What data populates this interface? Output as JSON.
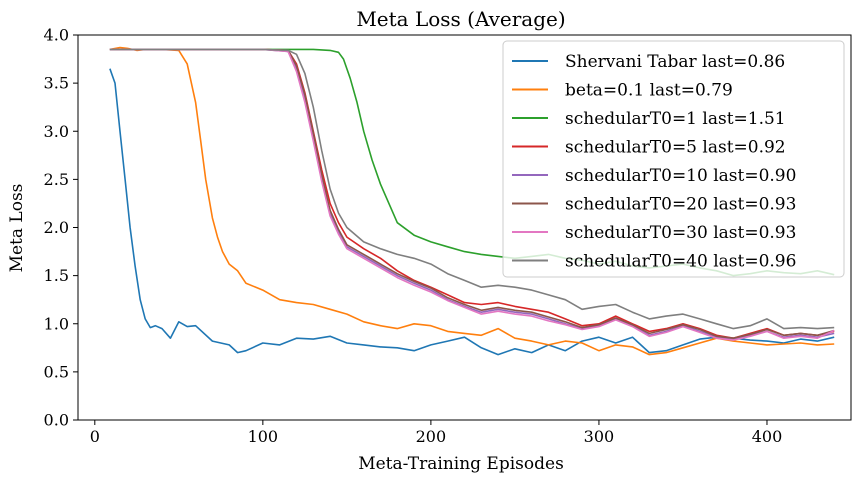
{
  "chart_data": {
    "type": "line",
    "title": "Meta Loss (Average)",
    "xlabel": "Meta-Training Episodes",
    "ylabel": "Meta Loss",
    "xlim": [
      -10,
      450
    ],
    "ylim": [
      0,
      4
    ],
    "xticks": [
      0,
      100,
      200,
      300,
      400
    ],
    "yticks": [
      0.0,
      0.5,
      1.0,
      1.5,
      2.0,
      2.5,
      3.0,
      3.5,
      4.0
    ],
    "xtick_labels": [
      "0",
      "100",
      "200",
      "300",
      "400"
    ],
    "ytick_labels": [
      "0.0",
      "0.5",
      "1.0",
      "1.5",
      "2.0",
      "2.5",
      "3.0",
      "3.5",
      "4.0"
    ],
    "grid": false,
    "legend_position": "top-right",
    "series": [
      {
        "name": "Shervani Tabar last=0.86",
        "color": "#1f77b4",
        "x": [
          9,
          12,
          15,
          18,
          21,
          24,
          27,
          30,
          33,
          36,
          40,
          45,
          50,
          55,
          60,
          70,
          80,
          85,
          90,
          100,
          110,
          120,
          130,
          140,
          150,
          160,
          170,
          180,
          190,
          200,
          210,
          220,
          230,
          240,
          250,
          260,
          270,
          280,
          290,
          300,
          310,
          320,
          330,
          340,
          350,
          360,
          370,
          380,
          390,
          400,
          410,
          420,
          430,
          440
        ],
        "y": [
          3.65,
          3.5,
          3.0,
          2.5,
          2.0,
          1.6,
          1.25,
          1.05,
          0.96,
          0.98,
          0.95,
          0.85,
          1.02,
          0.97,
          0.98,
          0.82,
          0.78,
          0.7,
          0.72,
          0.8,
          0.78,
          0.85,
          0.84,
          0.87,
          0.8,
          0.78,
          0.76,
          0.75,
          0.72,
          0.78,
          0.82,
          0.86,
          0.75,
          0.68,
          0.74,
          0.7,
          0.78,
          0.72,
          0.82,
          0.86,
          0.8,
          0.86,
          0.7,
          0.72,
          0.78,
          0.84,
          0.86,
          0.85,
          0.83,
          0.82,
          0.8,
          0.84,
          0.82,
          0.86
        ]
      },
      {
        "name": "beta=0.1 last=0.79",
        "color": "#ff7f0e",
        "x": [
          9,
          15,
          20,
          25,
          30,
          40,
          50,
          55,
          60,
          63,
          66,
          70,
          73,
          76,
          80,
          85,
          90,
          100,
          110,
          120,
          130,
          140,
          150,
          160,
          170,
          180,
          190,
          200,
          210,
          220,
          230,
          240,
          250,
          260,
          270,
          280,
          290,
          300,
          310,
          320,
          330,
          340,
          350,
          360,
          370,
          380,
          390,
          400,
          410,
          420,
          430,
          440
        ],
        "y": [
          3.85,
          3.87,
          3.86,
          3.84,
          3.85,
          3.85,
          3.84,
          3.7,
          3.3,
          2.9,
          2.5,
          2.1,
          1.9,
          1.75,
          1.62,
          1.55,
          1.42,
          1.35,
          1.25,
          1.22,
          1.2,
          1.15,
          1.1,
          1.02,
          0.98,
          0.95,
          1.0,
          0.98,
          0.92,
          0.9,
          0.88,
          0.95,
          0.85,
          0.82,
          0.78,
          0.82,
          0.8,
          0.72,
          0.78,
          0.76,
          0.68,
          0.7,
          0.75,
          0.8,
          0.85,
          0.82,
          0.8,
          0.78,
          0.79,
          0.8,
          0.78,
          0.79
        ]
      },
      {
        "name": "schedularT0=1 last=1.51",
        "color": "#2ca02c",
        "x": [
          9,
          50,
          100,
          130,
          140,
          145,
          148,
          152,
          156,
          160,
          165,
          170,
          175,
          180,
          190,
          200,
          210,
          220,
          230,
          240,
          250,
          260,
          270,
          280,
          290,
          300,
          310,
          320,
          330,
          340,
          350,
          360,
          370,
          380,
          390,
          400,
          410,
          420,
          430,
          440
        ],
        "y": [
          3.85,
          3.85,
          3.85,
          3.85,
          3.84,
          3.82,
          3.75,
          3.55,
          3.3,
          3.0,
          2.7,
          2.45,
          2.25,
          2.05,
          1.92,
          1.85,
          1.8,
          1.75,
          1.72,
          1.7,
          1.68,
          1.7,
          1.72,
          1.68,
          1.66,
          1.62,
          1.65,
          1.6,
          1.58,
          1.6,
          1.62,
          1.58,
          1.55,
          1.5,
          1.52,
          1.55,
          1.53,
          1.52,
          1.55,
          1.51
        ]
      },
      {
        "name": "schedularT0=5 last=0.92",
        "color": "#d62728",
        "x": [
          9,
          50,
          100,
          115,
          120,
          125,
          130,
          135,
          140,
          145,
          150,
          160,
          170,
          180,
          190,
          200,
          210,
          220,
          230,
          240,
          250,
          260,
          270,
          280,
          290,
          300,
          310,
          320,
          330,
          340,
          350,
          360,
          370,
          380,
          390,
          400,
          410,
          420,
          430,
          440
        ],
        "y": [
          3.85,
          3.85,
          3.85,
          3.84,
          3.7,
          3.4,
          3.0,
          2.6,
          2.25,
          2.05,
          1.9,
          1.78,
          1.68,
          1.55,
          1.45,
          1.38,
          1.3,
          1.22,
          1.2,
          1.22,
          1.18,
          1.15,
          1.12,
          1.05,
          0.98,
          1.0,
          1.08,
          1.0,
          0.92,
          0.95,
          1.0,
          0.95,
          0.88,
          0.85,
          0.9,
          0.95,
          0.88,
          0.9,
          0.88,
          0.92
        ]
      },
      {
        "name": "schedularT0=10 last=0.90",
        "color": "#9467bd",
        "x": [
          9,
          50,
          100,
          115,
          120,
          125,
          130,
          135,
          140,
          145,
          150,
          160,
          170,
          180,
          190,
          200,
          210,
          220,
          230,
          240,
          250,
          260,
          270,
          280,
          290,
          300,
          310,
          320,
          330,
          340,
          350,
          360,
          370,
          380,
          390,
          400,
          410,
          420,
          430,
          440
        ],
        "y": [
          3.85,
          3.85,
          3.85,
          3.83,
          3.65,
          3.35,
          2.95,
          2.5,
          2.15,
          1.95,
          1.8,
          1.7,
          1.6,
          1.5,
          1.42,
          1.35,
          1.25,
          1.18,
          1.12,
          1.15,
          1.12,
          1.1,
          1.05,
          1.0,
          0.95,
          0.98,
          1.05,
          0.98,
          0.88,
          0.92,
          0.98,
          0.92,
          0.86,
          0.84,
          0.88,
          0.92,
          0.86,
          0.88,
          0.86,
          0.9
        ]
      },
      {
        "name": "schedularT0=20 last=0.93",
        "color": "#8c564b",
        "x": [
          9,
          50,
          100,
          115,
          120,
          125,
          130,
          135,
          140,
          145,
          150,
          160,
          170,
          180,
          190,
          200,
          210,
          220,
          230,
          240,
          250,
          260,
          270,
          280,
          290,
          300,
          310,
          320,
          330,
          340,
          350,
          360,
          370,
          380,
          390,
          400,
          410,
          420,
          430,
          440
        ],
        "y": [
          3.85,
          3.85,
          3.85,
          3.84,
          3.68,
          3.38,
          2.98,
          2.55,
          2.18,
          1.98,
          1.82,
          1.72,
          1.62,
          1.52,
          1.44,
          1.37,
          1.27,
          1.2,
          1.14,
          1.17,
          1.14,
          1.12,
          1.07,
          1.02,
          0.96,
          0.99,
          1.06,
          0.99,
          0.9,
          0.94,
          0.99,
          0.94,
          0.87,
          0.85,
          0.89,
          0.94,
          0.88,
          0.9,
          0.88,
          0.93
        ]
      },
      {
        "name": "schedularT0=30 last=0.93",
        "color": "#e377c2",
        "x": [
          9,
          50,
          100,
          115,
          120,
          125,
          130,
          135,
          140,
          145,
          150,
          160,
          170,
          180,
          190,
          200,
          210,
          220,
          230,
          240,
          250,
          260,
          270,
          280,
          290,
          300,
          310,
          320,
          330,
          340,
          350,
          360,
          370,
          380,
          390,
          400,
          410,
          420,
          430,
          440
        ],
        "y": [
          3.85,
          3.85,
          3.85,
          3.83,
          3.62,
          3.3,
          2.9,
          2.48,
          2.12,
          1.93,
          1.78,
          1.68,
          1.58,
          1.48,
          1.4,
          1.33,
          1.24,
          1.17,
          1.1,
          1.13,
          1.1,
          1.08,
          1.03,
          0.99,
          0.94,
          0.97,
          1.04,
          0.97,
          0.87,
          0.91,
          0.97,
          0.91,
          0.85,
          0.83,
          0.87,
          0.92,
          0.85,
          0.87,
          0.85,
          0.93
        ]
      },
      {
        "name": "schedularT0=40 last=0.96",
        "color": "#7f7f7f",
        "x": [
          9,
          50,
          100,
          115,
          120,
          125,
          130,
          135,
          140,
          145,
          150,
          160,
          170,
          180,
          190,
          200,
          210,
          220,
          230,
          240,
          250,
          260,
          270,
          280,
          290,
          300,
          310,
          320,
          330,
          340,
          350,
          360,
          370,
          380,
          390,
          400,
          410,
          420,
          430,
          440
        ],
        "y": [
          3.85,
          3.85,
          3.85,
          3.84,
          3.8,
          3.6,
          3.25,
          2.8,
          2.4,
          2.15,
          2.0,
          1.85,
          1.78,
          1.72,
          1.68,
          1.62,
          1.52,
          1.45,
          1.38,
          1.4,
          1.38,
          1.35,
          1.3,
          1.25,
          1.15,
          1.18,
          1.2,
          1.12,
          1.05,
          1.08,
          1.1,
          1.05,
          1.0,
          0.95,
          0.98,
          1.05,
          0.95,
          0.96,
          0.95,
          0.96
        ]
      }
    ]
  }
}
